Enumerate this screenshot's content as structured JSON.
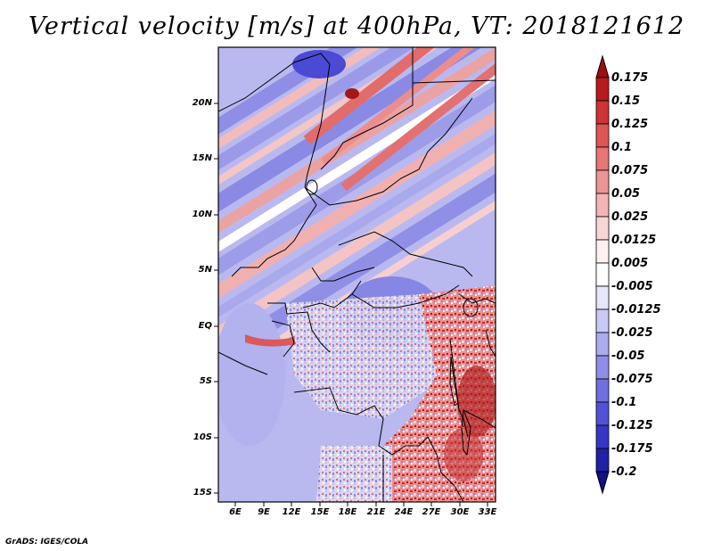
{
  "title": "Vertical velocity [m/s] at 400hPa, VT: 2018121612",
  "credit": "GrADS: IGES/COLA",
  "lat_labels": [
    "20N",
    "15N",
    "10N",
    "5N",
    "EQ",
    "5S",
    "10S",
    "15S"
  ],
  "lon_labels": [
    "6E",
    "9E",
    "12E",
    "15E",
    "18E",
    "21E",
    "24E",
    "27E",
    "30E",
    "33E"
  ],
  "colorbar": {
    "labels": [
      "0.175",
      "0.15",
      "0.125",
      "0.1",
      "0.075",
      "0.05",
      "0.025",
      "0.0125",
      "0.005",
      "-0.005",
      "-0.0125",
      "-0.025",
      "-0.05",
      "-0.075",
      "-0.1",
      "-0.125",
      "-0.175",
      "-0.2"
    ],
    "colors": [
      "#9e0e10",
      "#b81b1d",
      "#cf3335",
      "#df5556",
      "#e67574",
      "#ec9595",
      "#f2b5b5",
      "#f8d6d6",
      "#fdf1f1",
      "#ffffff",
      "#e5e5fb",
      "#c9c9f5",
      "#ababef",
      "#8e8ee9",
      "#7070e1",
      "#5252d8",
      "#3636c6",
      "#2020a8",
      "#140f86"
    ]
  }
}
